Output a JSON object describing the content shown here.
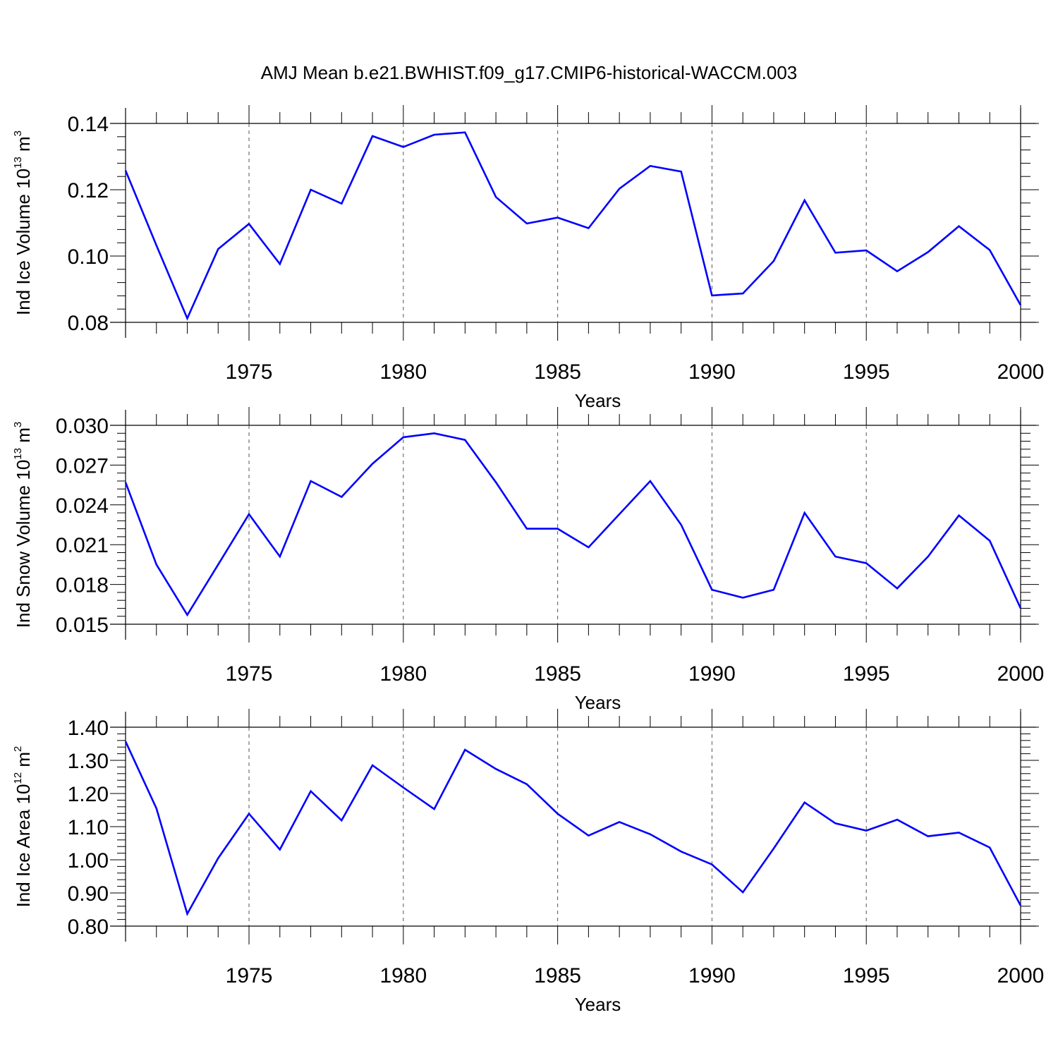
{
  "title": "AMJ Mean b.e21.BWHIST.f09_g17.CMIP6-historical-WACCM.003",
  "colors": {
    "series": "#0000ff",
    "axis": "#000000",
    "grid": "#555555"
  },
  "chart_data": [
    {
      "type": "line",
      "xlabel": "Years",
      "ylabel": {
        "text": "Ind Ice Volume 10",
        "exp": "13",
        "unit": " m",
        "unit_exp": "3"
      },
      "xlim": [
        1971,
        2000
      ],
      "ylim": [
        0.08,
        0.14
      ],
      "xticks": [
        "1975",
        "1980",
        "1985",
        "1990",
        "1995",
        "2000"
      ],
      "yticks": [
        "0.08",
        "0.10",
        "0.12",
        "0.14"
      ],
      "grid": "vertical dashed at major x ticks",
      "x": [
        1971,
        1972,
        1973,
        1974,
        1975,
        1976,
        1977,
        1978,
        1979,
        1980,
        1981,
        1982,
        1983,
        1984,
        1985,
        1986,
        1987,
        1988,
        1989,
        1990,
        1991,
        1992,
        1993,
        1994,
        1995,
        1996,
        1997,
        1998,
        1999,
        2000
      ],
      "values": [
        0.1258,
        0.1032,
        0.0812,
        0.1021,
        0.1097,
        0.0976,
        0.12,
        0.1158,
        0.1362,
        0.1329,
        0.1366,
        0.1373,
        0.1178,
        0.1098,
        0.1116,
        0.1084,
        0.1203,
        0.1272,
        0.1255,
        0.0881,
        0.0887,
        0.0985,
        0.1168,
        0.101,
        0.1017,
        0.0954,
        0.1012,
        0.109,
        0.1018,
        0.0852
      ]
    },
    {
      "type": "line",
      "xlabel": "Years",
      "ylabel": {
        "text": "Ind Snow Volume 10",
        "exp": "13",
        "unit": " m",
        "unit_exp": "3"
      },
      "xlim": [
        1971,
        2000
      ],
      "ylim": [
        0.015,
        0.03
      ],
      "xticks": [
        "1975",
        "1980",
        "1985",
        "1990",
        "1995",
        "2000"
      ],
      "yticks": [
        "0.015",
        "0.018",
        "0.021",
        "0.024",
        "0.027",
        "0.030"
      ],
      "grid": "vertical dashed at major x ticks",
      "x": [
        1971,
        1972,
        1973,
        1974,
        1975,
        1976,
        1977,
        1978,
        1979,
        1980,
        1981,
        1982,
        1983,
        1984,
        1985,
        1986,
        1987,
        1988,
        1989,
        1990,
        1991,
        1992,
        1993,
        1994,
        1995,
        1996,
        1997,
        1998,
        1999,
        2000
      ],
      "values": [
        0.0257,
        0.0195,
        0.0157,
        0.0195,
        0.0233,
        0.0201,
        0.0258,
        0.0246,
        0.0271,
        0.0291,
        0.0294,
        0.0289,
        0.0257,
        0.0222,
        0.0222,
        0.0208,
        0.0233,
        0.0258,
        0.0225,
        0.0176,
        0.017,
        0.0176,
        0.0234,
        0.0201,
        0.0196,
        0.0177,
        0.0201,
        0.0232,
        0.0213,
        0.0162
      ]
    },
    {
      "type": "line",
      "xlabel": "Years",
      "ylabel": {
        "text": "Ind Ice Area 10",
        "exp": "12",
        "unit": " m",
        "unit_exp": "2"
      },
      "xlim": [
        1971,
        2000
      ],
      "ylim": [
        0.8,
        1.4
      ],
      "xticks": [
        "1975",
        "1980",
        "1985",
        "1990",
        "1995",
        "2000"
      ],
      "yticks": [
        "0.80",
        "0.90",
        "1.00",
        "1.10",
        "1.20",
        "1.30",
        "1.40"
      ],
      "grid": "vertical dashed at major x ticks",
      "x": [
        1971,
        1972,
        1973,
        1974,
        1975,
        1976,
        1977,
        1978,
        1979,
        1980,
        1981,
        1982,
        1983,
        1984,
        1985,
        1986,
        1987,
        1988,
        1989,
        1990,
        1991,
        1992,
        1993,
        1994,
        1995,
        1996,
        1997,
        1998,
        1999,
        2000
      ],
      "values": [
        1.357,
        1.155,
        0.837,
        1.005,
        1.139,
        1.031,
        1.207,
        1.119,
        1.285,
        1.218,
        1.153,
        1.332,
        1.274,
        1.228,
        1.139,
        1.073,
        1.114,
        1.077,
        1.025,
        0.986,
        0.902,
        1.034,
        1.173,
        1.11,
        1.088,
        1.121,
        1.071,
        1.082,
        1.037,
        0.862
      ]
    }
  ]
}
